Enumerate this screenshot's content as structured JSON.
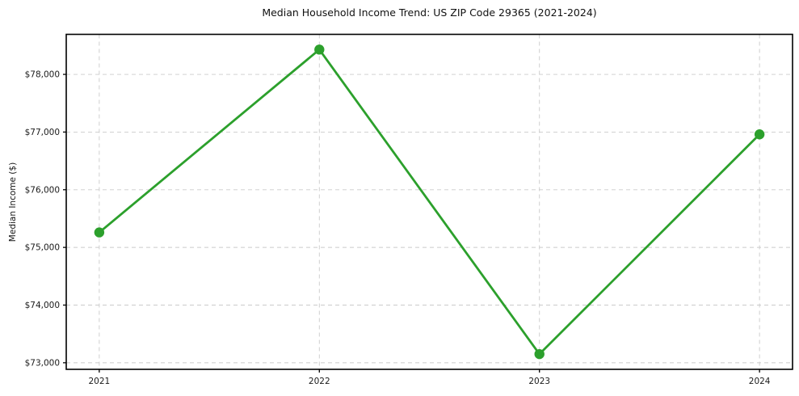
{
  "chart_data": {
    "type": "line",
    "title": "Median Household Income Trend: US ZIP Code 29365 (2021-2024)",
    "xlabel": "",
    "ylabel": "Median Income ($)",
    "x": [
      2021,
      2022,
      2023,
      2024
    ],
    "x_tick_labels": [
      "2021",
      "2022",
      "2023",
      "2024"
    ],
    "series": [
      {
        "values": [
          75260,
          78430,
          73150,
          76960
        ],
        "color": "#2ca02c",
        "marker": "circle"
      }
    ],
    "y_ticks": [
      73000,
      74000,
      75000,
      76000,
      77000,
      78000
    ],
    "y_tick_labels": [
      "$73,000",
      "$74,000",
      "$75,000",
      "$76,000",
      "$77,000",
      "$78,000"
    ],
    "xlim": [
      2020.85,
      2024.15
    ],
    "ylim": [
      72886,
      78694
    ],
    "grid": true,
    "grid_style": "dashed",
    "grid_color": "#cbcbcb",
    "spine_color": "#000000",
    "tick_label_color": "#1a1a1a",
    "legend_position": "none",
    "background": "#ffffff"
  }
}
